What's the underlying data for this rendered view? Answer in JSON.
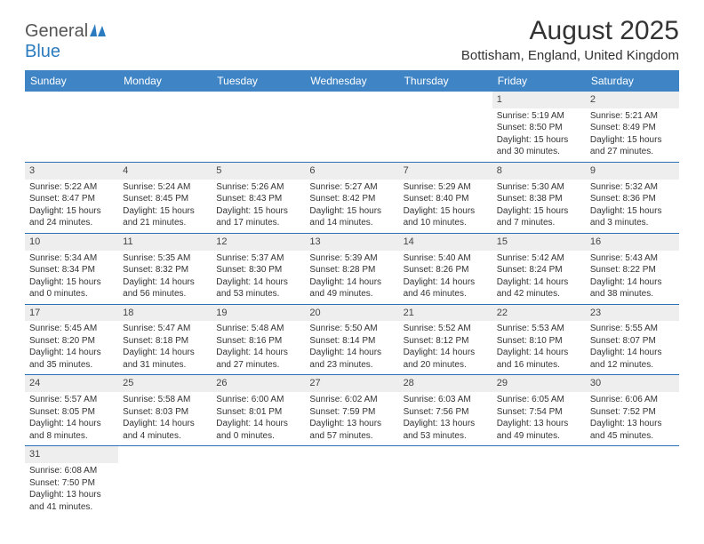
{
  "logo": {
    "word1": "General",
    "word2": "Blue"
  },
  "header": {
    "title": "August 2025",
    "location": "Bottisham, England, United Kingdom"
  },
  "colors": {
    "header_bg": "#3f85c6",
    "header_text": "#ffffff",
    "cell_border": "#2b6fb5",
    "daynum_bg": "#eeeeee",
    "body_text": "#333333"
  },
  "days": [
    "Sunday",
    "Monday",
    "Tuesday",
    "Wednesday",
    "Thursday",
    "Friday",
    "Saturday"
  ],
  "weeks": [
    [
      null,
      null,
      null,
      null,
      null,
      {
        "n": "1",
        "sr": "Sunrise: 5:19 AM",
        "ss": "Sunset: 8:50 PM",
        "dl1": "Daylight: 15 hours",
        "dl2": "and 30 minutes."
      },
      {
        "n": "2",
        "sr": "Sunrise: 5:21 AM",
        "ss": "Sunset: 8:49 PM",
        "dl1": "Daylight: 15 hours",
        "dl2": "and 27 minutes."
      }
    ],
    [
      {
        "n": "3",
        "sr": "Sunrise: 5:22 AM",
        "ss": "Sunset: 8:47 PM",
        "dl1": "Daylight: 15 hours",
        "dl2": "and 24 minutes."
      },
      {
        "n": "4",
        "sr": "Sunrise: 5:24 AM",
        "ss": "Sunset: 8:45 PM",
        "dl1": "Daylight: 15 hours",
        "dl2": "and 21 minutes."
      },
      {
        "n": "5",
        "sr": "Sunrise: 5:26 AM",
        "ss": "Sunset: 8:43 PM",
        "dl1": "Daylight: 15 hours",
        "dl2": "and 17 minutes."
      },
      {
        "n": "6",
        "sr": "Sunrise: 5:27 AM",
        "ss": "Sunset: 8:42 PM",
        "dl1": "Daylight: 15 hours",
        "dl2": "and 14 minutes."
      },
      {
        "n": "7",
        "sr": "Sunrise: 5:29 AM",
        "ss": "Sunset: 8:40 PM",
        "dl1": "Daylight: 15 hours",
        "dl2": "and 10 minutes."
      },
      {
        "n": "8",
        "sr": "Sunrise: 5:30 AM",
        "ss": "Sunset: 8:38 PM",
        "dl1": "Daylight: 15 hours",
        "dl2": "and 7 minutes."
      },
      {
        "n": "9",
        "sr": "Sunrise: 5:32 AM",
        "ss": "Sunset: 8:36 PM",
        "dl1": "Daylight: 15 hours",
        "dl2": "and 3 minutes."
      }
    ],
    [
      {
        "n": "10",
        "sr": "Sunrise: 5:34 AM",
        "ss": "Sunset: 8:34 PM",
        "dl1": "Daylight: 15 hours",
        "dl2": "and 0 minutes."
      },
      {
        "n": "11",
        "sr": "Sunrise: 5:35 AM",
        "ss": "Sunset: 8:32 PM",
        "dl1": "Daylight: 14 hours",
        "dl2": "and 56 minutes."
      },
      {
        "n": "12",
        "sr": "Sunrise: 5:37 AM",
        "ss": "Sunset: 8:30 PM",
        "dl1": "Daylight: 14 hours",
        "dl2": "and 53 minutes."
      },
      {
        "n": "13",
        "sr": "Sunrise: 5:39 AM",
        "ss": "Sunset: 8:28 PM",
        "dl1": "Daylight: 14 hours",
        "dl2": "and 49 minutes."
      },
      {
        "n": "14",
        "sr": "Sunrise: 5:40 AM",
        "ss": "Sunset: 8:26 PM",
        "dl1": "Daylight: 14 hours",
        "dl2": "and 46 minutes."
      },
      {
        "n": "15",
        "sr": "Sunrise: 5:42 AM",
        "ss": "Sunset: 8:24 PM",
        "dl1": "Daylight: 14 hours",
        "dl2": "and 42 minutes."
      },
      {
        "n": "16",
        "sr": "Sunrise: 5:43 AM",
        "ss": "Sunset: 8:22 PM",
        "dl1": "Daylight: 14 hours",
        "dl2": "and 38 minutes."
      }
    ],
    [
      {
        "n": "17",
        "sr": "Sunrise: 5:45 AM",
        "ss": "Sunset: 8:20 PM",
        "dl1": "Daylight: 14 hours",
        "dl2": "and 35 minutes."
      },
      {
        "n": "18",
        "sr": "Sunrise: 5:47 AM",
        "ss": "Sunset: 8:18 PM",
        "dl1": "Daylight: 14 hours",
        "dl2": "and 31 minutes."
      },
      {
        "n": "19",
        "sr": "Sunrise: 5:48 AM",
        "ss": "Sunset: 8:16 PM",
        "dl1": "Daylight: 14 hours",
        "dl2": "and 27 minutes."
      },
      {
        "n": "20",
        "sr": "Sunrise: 5:50 AM",
        "ss": "Sunset: 8:14 PM",
        "dl1": "Daylight: 14 hours",
        "dl2": "and 23 minutes."
      },
      {
        "n": "21",
        "sr": "Sunrise: 5:52 AM",
        "ss": "Sunset: 8:12 PM",
        "dl1": "Daylight: 14 hours",
        "dl2": "and 20 minutes."
      },
      {
        "n": "22",
        "sr": "Sunrise: 5:53 AM",
        "ss": "Sunset: 8:10 PM",
        "dl1": "Daylight: 14 hours",
        "dl2": "and 16 minutes."
      },
      {
        "n": "23",
        "sr": "Sunrise: 5:55 AM",
        "ss": "Sunset: 8:07 PM",
        "dl1": "Daylight: 14 hours",
        "dl2": "and 12 minutes."
      }
    ],
    [
      {
        "n": "24",
        "sr": "Sunrise: 5:57 AM",
        "ss": "Sunset: 8:05 PM",
        "dl1": "Daylight: 14 hours",
        "dl2": "and 8 minutes."
      },
      {
        "n": "25",
        "sr": "Sunrise: 5:58 AM",
        "ss": "Sunset: 8:03 PM",
        "dl1": "Daylight: 14 hours",
        "dl2": "and 4 minutes."
      },
      {
        "n": "26",
        "sr": "Sunrise: 6:00 AM",
        "ss": "Sunset: 8:01 PM",
        "dl1": "Daylight: 14 hours",
        "dl2": "and 0 minutes."
      },
      {
        "n": "27",
        "sr": "Sunrise: 6:02 AM",
        "ss": "Sunset: 7:59 PM",
        "dl1": "Daylight: 13 hours",
        "dl2": "and 57 minutes."
      },
      {
        "n": "28",
        "sr": "Sunrise: 6:03 AM",
        "ss": "Sunset: 7:56 PM",
        "dl1": "Daylight: 13 hours",
        "dl2": "and 53 minutes."
      },
      {
        "n": "29",
        "sr": "Sunrise: 6:05 AM",
        "ss": "Sunset: 7:54 PM",
        "dl1": "Daylight: 13 hours",
        "dl2": "and 49 minutes."
      },
      {
        "n": "30",
        "sr": "Sunrise: 6:06 AM",
        "ss": "Sunset: 7:52 PM",
        "dl1": "Daylight: 13 hours",
        "dl2": "and 45 minutes."
      }
    ],
    [
      {
        "n": "31",
        "sr": "Sunrise: 6:08 AM",
        "ss": "Sunset: 7:50 PM",
        "dl1": "Daylight: 13 hours",
        "dl2": "and 41 minutes."
      },
      null,
      null,
      null,
      null,
      null,
      null
    ]
  ]
}
